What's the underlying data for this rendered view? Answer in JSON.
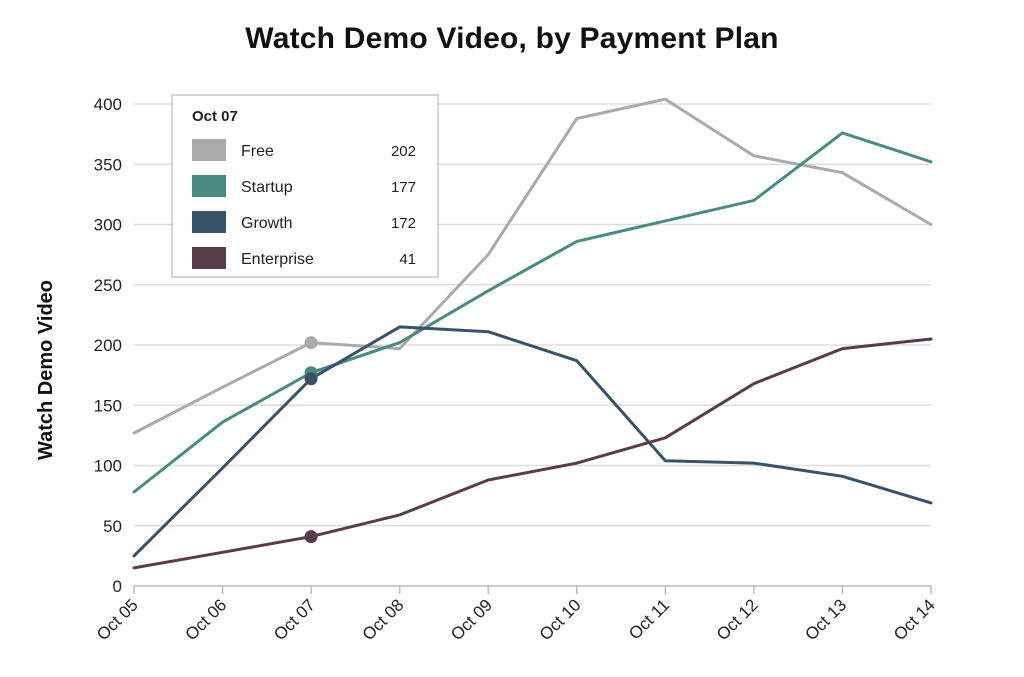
{
  "chart_data": {
    "type": "line",
    "title": "Watch Demo Video, by Payment Plan",
    "xlabel": "",
    "ylabel": "Watch Demo Video",
    "categories": [
      "Oct 05",
      "Oct 06",
      "Oct 07",
      "Oct 08",
      "Oct 09",
      "Oct 10",
      "Oct 11",
      "Oct 12",
      "Oct 13",
      "Oct 14"
    ],
    "ylim": [
      0,
      400
    ],
    "yticks": [
      0,
      50,
      100,
      150,
      200,
      250,
      300,
      350,
      400
    ],
    "grid": true,
    "series": [
      {
        "name": "Free",
        "color": "#aaaaaa",
        "values": [
          127,
          165,
          202,
          197,
          275,
          388,
          404,
          357,
          343,
          300
        ]
      },
      {
        "name": "Startup",
        "color": "#4b8a82",
        "values": [
          78,
          136,
          177,
          202,
          245,
          286,
          303,
          320,
          376,
          352
        ]
      },
      {
        "name": "Growth",
        "color": "#3a5268",
        "values": [
          25,
          98,
          172,
          215,
          211,
          187,
          104,
          102,
          91,
          69
        ]
      },
      {
        "name": "Enterprise",
        "color": "#573d4a",
        "values": [
          15,
          28,
          41,
          59,
          88,
          102,
          123,
          168,
          197,
          205
        ]
      }
    ],
    "tooltip": {
      "header": "Oct 07",
      "index": 2,
      "placement": "top-left",
      "items": [
        {
          "name": "Free",
          "value": "202"
        },
        {
          "name": "Startup",
          "value": "177"
        },
        {
          "name": "Growth",
          "value": "172"
        },
        {
          "name": "Enterprise",
          "value": "41"
        }
      ]
    }
  }
}
